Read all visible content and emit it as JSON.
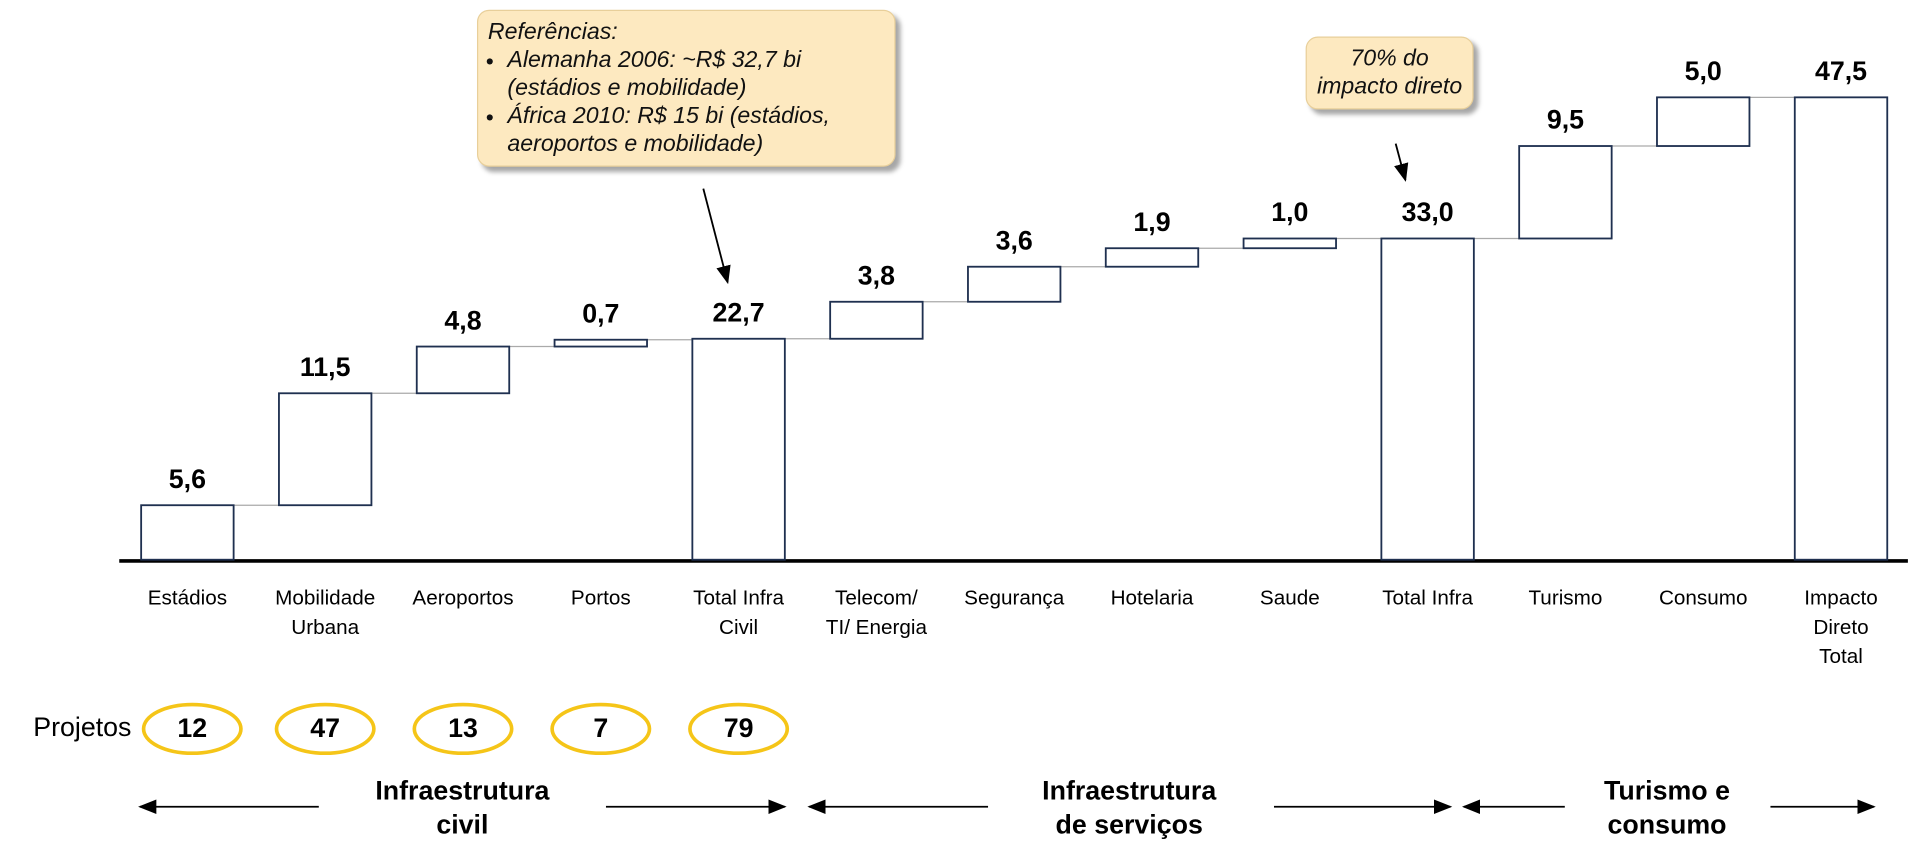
{
  "chart_data": {
    "type": "waterfall",
    "categories": [
      "Estádios",
      "Mobilidade\nUrbana",
      "Aeroportos",
      "Portos",
      "Total Infra\nCivil",
      "Telecom/\nTI/ Energia",
      "Segurança",
      "Hotelaria",
      "Saude",
      "Total Infra",
      "Turismo",
      "Consumo",
      "Impacto\nDireto\nTotal"
    ],
    "values": [
      5.6,
      11.5,
      4.8,
      0.7,
      22.7,
      3.8,
      3.6,
      1.9,
      1.0,
      33.0,
      9.5,
      5.0,
      47.5
    ],
    "value_labels": [
      "5,6",
      "11,5",
      "4,8",
      "0,7",
      "22,7",
      "3,8",
      "3,6",
      "1,9",
      "1,0",
      "33,0",
      "9,5",
      "5,0",
      "47,5"
    ],
    "measure": [
      "relative",
      "relative",
      "relative",
      "relative",
      "total",
      "relative",
      "relative",
      "relative",
      "relative",
      "total",
      "relative",
      "relative",
      "total"
    ],
    "color": "#1f3050",
    "projects": {
      "label": "Projetos",
      "values": [
        12,
        47,
        13,
        7,
        79
      ]
    },
    "groups": [
      "Infraestrutura\ncivil",
      "Infraestrutura\nde serviços",
      "Turismo e\nconsumo"
    ],
    "annotations": [
      {
        "title": "Referências:",
        "bullets": [
          "Alemanha 2006: ~R$ 32,7 bi (estádios e mobilidade)",
          "África 2010: R$ 15 bi (estádios, aeroportos e mobilidade)"
        ]
      },
      {
        "text": "70% do impacto direto"
      }
    ]
  }
}
